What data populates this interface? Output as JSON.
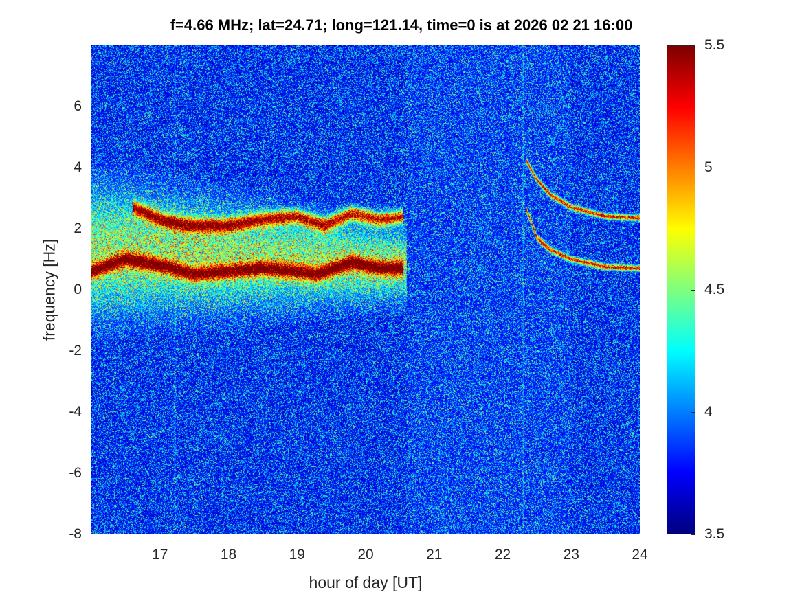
{
  "chart_data": {
    "type": "heatmap",
    "title": "f=4.66 MHz;  lat=24.71; long=121.14, time=0 is at 2026 02 21 16:00",
    "xlabel": "hour of day [UT]",
    "ylabel": "frequency [Hz]",
    "xlim": [
      16,
      24
    ],
    "ylim": [
      -8,
      8
    ],
    "xticks": [
      17,
      18,
      19,
      20,
      21,
      22,
      23,
      24
    ],
    "xtick_labels": [
      "17",
      "18",
      "19",
      "20",
      "21",
      "22",
      "23",
      "24"
    ],
    "yticks": [
      -8,
      -6,
      -4,
      -2,
      0,
      2,
      4,
      6
    ],
    "ytick_labels": [
      "-8",
      "-6",
      "-4",
      "-2",
      "0",
      "2",
      "4",
      "6"
    ],
    "colormap": "jet",
    "clim": [
      3.5,
      5.5
    ],
    "colorbar_ticks": [
      3.5,
      4,
      4.5,
      5,
      5.5
    ],
    "colorbar_tick_labels": [
      "3.5",
      "4",
      "4.5",
      "5",
      "5.5"
    ],
    "background_level": 3.7,
    "traces": [
      {
        "name": "lower-left-trace",
        "points": [
          [
            16.0,
            0.6
          ],
          [
            16.5,
            1.0
          ],
          [
            17.0,
            0.8
          ],
          [
            17.5,
            0.5
          ],
          [
            18.0,
            0.6
          ],
          [
            18.5,
            0.7
          ],
          [
            19.0,
            0.6
          ],
          [
            19.3,
            0.5
          ],
          [
            19.8,
            0.9
          ],
          [
            20.2,
            0.7
          ],
          [
            20.55,
            0.7
          ]
        ]
      },
      {
        "name": "upper-left-trace",
        "points": [
          [
            16.6,
            2.7
          ],
          [
            17.0,
            2.3
          ],
          [
            17.4,
            2.1
          ],
          [
            18.0,
            2.1
          ],
          [
            18.5,
            2.3
          ],
          [
            19.0,
            2.4
          ],
          [
            19.4,
            2.1
          ],
          [
            19.8,
            2.5
          ],
          [
            20.2,
            2.3
          ],
          [
            20.55,
            2.4
          ]
        ]
      },
      {
        "name": "upper-right-trace",
        "points": [
          [
            22.35,
            4.2
          ],
          [
            22.5,
            3.6
          ],
          [
            22.7,
            3.1
          ],
          [
            23.0,
            2.7
          ],
          [
            23.5,
            2.4
          ],
          [
            24.0,
            2.35
          ]
        ]
      },
      {
        "name": "lower-right-trace",
        "points": [
          [
            22.35,
            2.6
          ],
          [
            22.5,
            1.7
          ],
          [
            22.7,
            1.3
          ],
          [
            23.0,
            1.0
          ],
          [
            23.5,
            0.75
          ],
          [
            24.0,
            0.7
          ]
        ]
      }
    ],
    "diffuse_band": {
      "x": [
        16.0,
        20.6
      ],
      "center_hz": [
        1.3,
        0.8
      ],
      "half_width_hz": [
        2.3,
        1.2
      ]
    },
    "vertical_streaks": [
      17.22,
      22.3
    ]
  }
}
